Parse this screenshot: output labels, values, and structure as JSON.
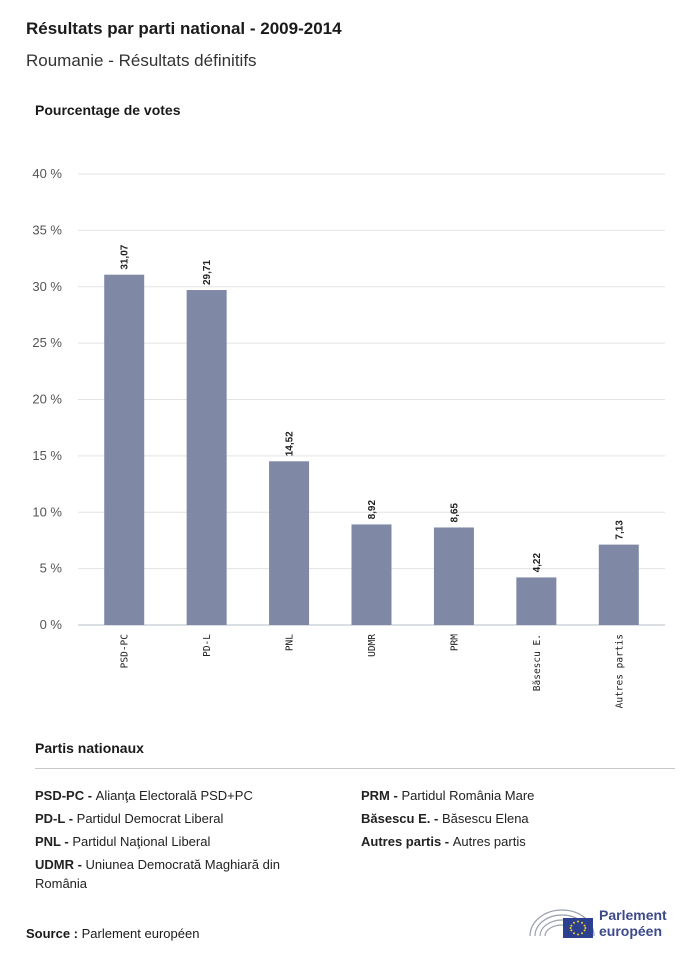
{
  "header": {
    "title": "Résultats par parti national - 2009-2014",
    "subtitle": "Roumanie - Résultats définitifs"
  },
  "chart_data": {
    "type": "bar",
    "ylabel": "Pourcentage de votes",
    "categories": [
      "PSD-PC",
      "PD-L",
      "PNL",
      "UDMR",
      "PRM",
      "Băsescu E.",
      "Autres partis"
    ],
    "values": [
      31.07,
      29.71,
      14.52,
      8.92,
      8.65,
      4.22,
      7.13
    ],
    "value_labels": [
      "31,07",
      "29,71",
      "14,52",
      "8,92",
      "8,65",
      "4,22",
      "7,13"
    ],
    "ylim": [
      0,
      40
    ],
    "yticks": [
      "0 %",
      "5 %",
      "10 %",
      "15 %",
      "20 %",
      "25 %",
      "30 %",
      "35 %",
      "40 %"
    ],
    "grid": true,
    "bar_color": "#7f89a6"
  },
  "legend": {
    "title": "Partis nationaux",
    "left": [
      {
        "abbr": "PSD-PC - ",
        "name": "Alianţa Electorală PSD+PC"
      },
      {
        "abbr": "PD-L - ",
        "name": "Partidul Democrat Liberal"
      },
      {
        "abbr": "PNL - ",
        "name": "Partidul Naţional Liberal"
      },
      {
        "abbr": "UDMR - ",
        "name": "Uniunea Democrată Maghiară din România"
      }
    ],
    "right": [
      {
        "abbr": "PRM - ",
        "name": "Partidul România Mare"
      },
      {
        "abbr": "Băsescu E. - ",
        "name": "Băsescu Elena"
      },
      {
        "abbr": "Autres partis - ",
        "name": "Autres partis"
      }
    ]
  },
  "footer": {
    "source_label": "Source : ",
    "source_value": "Parlement européen",
    "logo_line1": "Parlement",
    "logo_line2": "européen"
  }
}
